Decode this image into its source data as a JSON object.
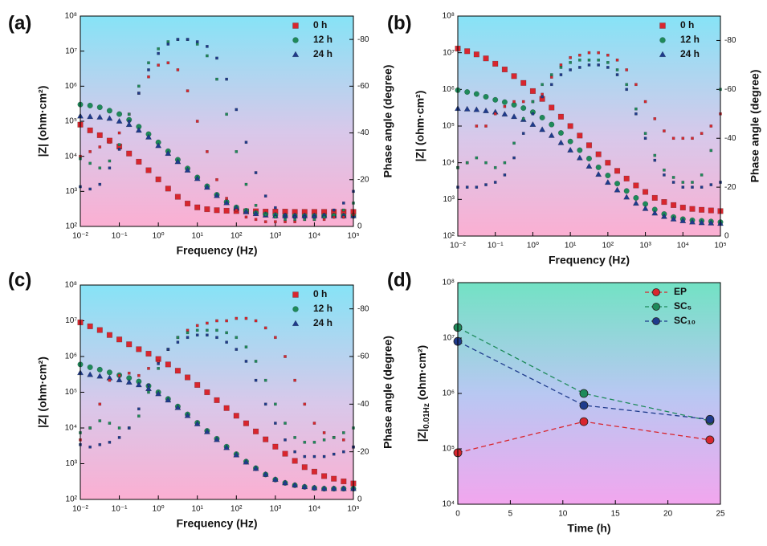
{
  "chart_data": [
    {
      "panel_label": "(a)",
      "type": "scatter",
      "xlabel": "Frequency (Hz)",
      "ylabel": "|Z| (ohm·cm²)",
      "y2label": "Phase angle (degree)",
      "xscale": "log",
      "yscale": "log",
      "legend": "upper right",
      "x": [
        0.01,
        0.0178,
        0.0316,
        0.0562,
        0.1,
        0.178,
        0.316,
        0.562,
        1,
        1.78,
        3.16,
        5.62,
        10,
        17.8,
        31.6,
        56.2,
        100,
        178,
        316,
        562,
        1000,
        1780,
        3160,
        5620,
        10000,
        17800,
        31600,
        56200,
        100000
      ],
      "xlim": [
        0.01,
        100000
      ],
      "xticks": [
        {
          "value": 0.01,
          "label": "10⁻²"
        },
        {
          "value": 0.1,
          "label": "10⁻¹"
        },
        {
          "value": 1,
          "label": "10⁰"
        },
        {
          "value": 10,
          "label": "10¹"
        },
        {
          "value": 100,
          "label": "10²"
        },
        {
          "value": 1000,
          "label": "10³"
        },
        {
          "value": 10000,
          "label": "10⁴"
        },
        {
          "value": 100000,
          "label": "10⁵"
        }
      ],
      "ylim": [
        100,
        100000000
      ],
      "yticks": [
        {
          "value": 100,
          "label": "10²"
        },
        {
          "value": 1000,
          "label": "10³"
        },
        {
          "value": 10000,
          "label": "10⁴"
        },
        {
          "value": 100000,
          "label": "10⁵"
        },
        {
          "value": 1000000,
          "label": "10⁶"
        },
        {
          "value": 10000000,
          "label": "10⁷"
        },
        {
          "value": 100000000,
          "label": "10⁸"
        }
      ],
      "y2lim": [
        0,
        -90
      ],
      "y2ticks": [
        0,
        -20,
        -40,
        -60,
        -80
      ],
      "series": [
        {
          "name": "0 h",
          "color": "#d8262e",
          "marker": "square",
          "values": [
            80000,
            55000,
            40000,
            28000,
            19000,
            12000,
            7000,
            4000,
            2200,
            1200,
            700,
            450,
            350,
            310,
            290,
            280,
            275,
            270,
            270,
            265,
            265,
            265,
            260,
            260,
            260,
            260,
            260,
            260,
            260
          ]
        },
        {
          "name": "12 h",
          "color": "#1e8a5a",
          "marker": "circle",
          "values": [
            300000,
            280000,
            250000,
            200000,
            160000,
            110000,
            70000,
            43000,
            25000,
            14000,
            8000,
            4500,
            2500,
            1400,
            800,
            500,
            350,
            280,
            240,
            220,
            210,
            200,
            200,
            200,
            200,
            200,
            200,
            200,
            200
          ]
        },
        {
          "name": "24 h",
          "color": "#1f3b8c",
          "marker": "triangle",
          "values": [
            140000,
            135000,
            130000,
            120000,
            100000,
            80000,
            55000,
            35000,
            20000,
            12000,
            7000,
            4000,
            2300,
            1300,
            750,
            470,
            330,
            260,
            230,
            210,
            200,
            200,
            200,
            200,
            200,
            200,
            200,
            200,
            200
          ]
        },
        {
          "color": "#d8262e",
          "marker": "square",
          "axis": "y2",
          "values": [
            -30,
            -32,
            -34,
            -36,
            -40,
            -48,
            -57,
            -64,
            -69,
            -70,
            -67,
            -58,
            -45,
            -32,
            -20,
            -12,
            -7,
            -4,
            -3,
            -2,
            -2,
            -2,
            -2,
            -3,
            -3,
            -3,
            -4,
            -4,
            -5
          ]
        },
        {
          "color": "#1e8a5a",
          "marker": "square",
          "axis": "y2",
          "values": [
            -29,
            -27,
            -25,
            -28,
            -35,
            -48,
            -60,
            -70,
            -76,
            -79,
            -80,
            -80,
            -78,
            -73,
            -63,
            -48,
            -32,
            -18,
            -9,
            -5,
            -4,
            -3,
            -3,
            -3,
            -3,
            -4,
            -5,
            -7,
            -10
          ]
        },
        {
          "color": "#1f3b8c",
          "marker": "square",
          "axis": "y2",
          "values": [
            -17,
            -16,
            -18,
            -25,
            -33,
            -45,
            -57,
            -67,
            -74,
            -78,
            -80,
            -80,
            -79,
            -77,
            -72,
            -63,
            -50,
            -36,
            -23,
            -13,
            -8,
            -5,
            -4,
            -4,
            -4,
            -5,
            -7,
            -10,
            -15
          ]
        }
      ]
    },
    {
      "panel_label": "(b)",
      "type": "scatter",
      "xlabel": "Frequency (Hz)",
      "ylabel": "|Z| (ohm·cm²)",
      "y2label": "Phase angle (degree)",
      "xscale": "log",
      "yscale": "log",
      "legend": "upper right",
      "x": [
        0.01,
        0.0178,
        0.0316,
        0.0562,
        0.1,
        0.178,
        0.316,
        0.562,
        1,
        1.78,
        3.16,
        5.62,
        10,
        17.8,
        31.6,
        56.2,
        100,
        178,
        316,
        562,
        1000,
        1780,
        3160,
        5620,
        10000,
        17800,
        31600,
        56200,
        100000
      ],
      "xlim": [
        0.01,
        100000
      ],
      "xticks": [
        {
          "value": 0.01,
          "label": "10⁻²"
        },
        {
          "value": 0.1,
          "label": "10⁻¹"
        },
        {
          "value": 1,
          "label": "10⁰"
        },
        {
          "value": 10,
          "label": "10¹"
        },
        {
          "value": 100,
          "label": "10²"
        },
        {
          "value": 1000,
          "label": "10³"
        },
        {
          "value": 10000,
          "label": "10⁴"
        },
        {
          "value": 100000,
          "label": "10⁵"
        }
      ],
      "ylim": [
        100,
        100000000
      ],
      "yticks": [
        {
          "value": 100,
          "label": "10²"
        },
        {
          "value": 1000,
          "label": "10³"
        },
        {
          "value": 10000,
          "label": "10⁴"
        },
        {
          "value": 100000,
          "label": "10⁵"
        },
        {
          "value": 1000000,
          "label": "10⁶"
        },
        {
          "value": 10000000,
          "label": "10⁷"
        },
        {
          "value": 100000000,
          "label": "10⁸"
        }
      ],
      "y2lim": [
        0,
        -90
      ],
      "y2ticks": [
        0,
        -20,
        -40,
        -60,
        -80
      ],
      "series": [
        {
          "name": "0 h",
          "color": "#d8262e",
          "marker": "square",
          "values": [
            13000000,
            11000000,
            9000000,
            7000000,
            5000000,
            3500000,
            2300000,
            1500000,
            900000,
            550000,
            320000,
            180000,
            100000,
            55000,
            30000,
            17000,
            10000,
            6000,
            3700,
            2400,
            1600,
            1100,
            850,
            700,
            600,
            550,
            520,
            500,
            480
          ]
        },
        {
          "name": "12 h",
          "color": "#1e8a5a",
          "marker": "circle",
          "values": [
            950000,
            850000,
            750000,
            630000,
            520000,
            450000,
            380000,
            310000,
            240000,
            170000,
            110000,
            65000,
            38000,
            22000,
            13000,
            7500,
            4500,
            2700,
            1700,
            1100,
            750,
            530,
            400,
            330,
            290,
            270,
            260,
            250,
            240
          ]
        },
        {
          "name": "24 h",
          "color": "#1f3b8c",
          "marker": "triangle",
          "values": [
            300000,
            290000,
            280000,
            260000,
            240000,
            210000,
            180000,
            150000,
            110000,
            80000,
            55000,
            35000,
            22000,
            13500,
            8000,
            4800,
            2900,
            1800,
            1150,
            780,
            560,
            420,
            340,
            290,
            260,
            240,
            230,
            225,
            220
          ]
        },
        {
          "color": "#d8262e",
          "marker": "square",
          "axis": "y2",
          "values": [
            -28,
            -30,
            -45,
            -45,
            -50,
            -53,
            -55,
            -55,
            -55,
            -58,
            -65,
            -70,
            -73,
            -74,
            -75,
            -75,
            -74,
            -72,
            -68,
            -62,
            -55,
            -48,
            -43,
            -40,
            -40,
            -40,
            -42,
            -45,
            -50
          ]
        },
        {
          "color": "#1e8a5a",
          "marker": "square",
          "axis": "y2",
          "values": [
            -28,
            -30,
            -32,
            -30,
            -28,
            -30,
            -38,
            -48,
            -55,
            -62,
            -66,
            -69,
            -71,
            -72,
            -72,
            -72,
            -71,
            -68,
            -62,
            -52,
            -42,
            -33,
            -27,
            -24,
            -22,
            -22,
            -25,
            -35,
            -60
          ]
        },
        {
          "color": "#1f3b8c",
          "marker": "square",
          "axis": "y2",
          "values": [
            -20,
            -20,
            -20,
            -21,
            -22,
            -25,
            -32,
            -42,
            -50,
            -57,
            -62,
            -66,
            -68,
            -69,
            -70,
            -70,
            -69,
            -66,
            -60,
            -50,
            -40,
            -31,
            -25,
            -22,
            -20,
            -20,
            -20,
            -21,
            -22
          ]
        }
      ]
    },
    {
      "panel_label": "(c)",
      "type": "scatter",
      "xlabel": "Frequency (Hz)",
      "ylabel": "|Z| (ohm·cm²)",
      "y2label": "Phase angle (degree)",
      "xscale": "log",
      "yscale": "log",
      "legend": "upper right",
      "x": [
        0.01,
        0.0178,
        0.0316,
        0.0562,
        0.1,
        0.178,
        0.316,
        0.562,
        1,
        1.78,
        3.16,
        5.62,
        10,
        17.8,
        31.6,
        56.2,
        100,
        178,
        316,
        562,
        1000,
        1780,
        3160,
        5620,
        10000,
        17800,
        31600,
        56200,
        100000
      ],
      "xlim": [
        0.01,
        100000
      ],
      "xticks": [
        {
          "value": 0.01,
          "label": "10⁻²"
        },
        {
          "value": 0.1,
          "label": "10⁻¹"
        },
        {
          "value": 1,
          "label": "10⁰"
        },
        {
          "value": 10,
          "label": "10¹"
        },
        {
          "value": 100,
          "label": "10²"
        },
        {
          "value": 1000,
          "label": "10³"
        },
        {
          "value": 10000,
          "label": "10⁴"
        },
        {
          "value": 100000,
          "label": "10⁵"
        }
      ],
      "ylim": [
        100,
        100000000
      ],
      "yticks": [
        {
          "value": 100,
          "label": "10²"
        },
        {
          "value": 1000,
          "label": "10³"
        },
        {
          "value": 10000,
          "label": "10⁴"
        },
        {
          "value": 100000,
          "label": "10⁵"
        },
        {
          "value": 1000000,
          "label": "10⁶"
        },
        {
          "value": 10000000,
          "label": "10⁷"
        },
        {
          "value": 100000000,
          "label": "10⁸"
        }
      ],
      "y2lim": [
        0,
        -90
      ],
      "y2ticks": [
        0,
        -20,
        -40,
        -60,
        -80
      ],
      "series": [
        {
          "name": "0 h",
          "color": "#d8262e",
          "marker": "square",
          "values": [
            9000000,
            7000000,
            5500000,
            4000000,
            3000000,
            2200000,
            1600000,
            1200000,
            850000,
            600000,
            400000,
            260000,
            160000,
            100000,
            60000,
            36000,
            22000,
            13500,
            8000,
            4800,
            3000,
            1900,
            1200,
            800,
            600,
            450,
            380,
            320,
            280
          ]
        },
        {
          "name": "12 h",
          "color": "#1e8a5a",
          "marker": "circle",
          "values": [
            600000,
            500000,
            430000,
            360000,
            300000,
            250000,
            200000,
            150000,
            100000,
            65000,
            40000,
            24000,
            14000,
            8300,
            5000,
            3000,
            1850,
            1150,
            750,
            500,
            360,
            290,
            250,
            225,
            210,
            200,
            200,
            200,
            200
          ]
        },
        {
          "name": "24 h",
          "color": "#1f3b8c",
          "marker": "triangle",
          "values": [
            350000,
            310000,
            280000,
            250000,
            220000,
            190000,
            160000,
            125000,
            90000,
            60000,
            37000,
            22000,
            13000,
            7800,
            4700,
            2800,
            1750,
            1100,
            730,
            500,
            360,
            290,
            250,
            225,
            210,
            200,
            200,
            200,
            200
          ]
        },
        {
          "color": "#d8262e",
          "marker": "square",
          "axis": "y2",
          "values": [
            -25,
            -30,
            -40,
            -50,
            -52,
            -53,
            -52,
            -55,
            -58,
            -63,
            -68,
            -71,
            -73,
            -74,
            -75,
            -75,
            -76,
            -76,
            -75,
            -72,
            -68,
            -60,
            -50,
            -40,
            -32,
            -28,
            -26,
            -25,
            -22
          ]
        },
        {
          "color": "#1e8a5a",
          "marker": "square",
          "axis": "y2",
          "values": [
            -28,
            -30,
            -33,
            -32,
            -30,
            -30,
            -35,
            -45,
            -55,
            -63,
            -68,
            -70,
            -71,
            -71,
            -71,
            -70,
            -68,
            -64,
            -58,
            -50,
            -40,
            -32,
            -26,
            -24,
            -24,
            -25,
            -26,
            -28,
            -30
          ]
        },
        {
          "color": "#1f3b8c",
          "marker": "square",
          "axis": "y2",
          "values": [
            -23,
            -22,
            -23,
            -24,
            -26,
            -30,
            -38,
            -48,
            -57,
            -63,
            -66,
            -68,
            -69,
            -69,
            -68,
            -66,
            -63,
            -58,
            -50,
            -40,
            -32,
            -25,
            -20,
            -18,
            -18,
            -18,
            -19,
            -20,
            -22
          ]
        }
      ]
    },
    {
      "panel_label": "(d)",
      "type": "line",
      "xlabel": "Time (h)",
      "ylabel": [
        "|Z|",
        "0.01Hz",
        " (ohm·cm²)"
      ],
      "yscale": "log",
      "legend": "upper right",
      "linestyle": "dashed",
      "x": [
        0,
        12,
        24
      ],
      "xlim": [
        0,
        25
      ],
      "xticks": [
        0,
        5,
        10,
        15,
        20,
        25
      ],
      "ylim": [
        10000,
        100000000
      ],
      "yticks": [
        {
          "value": 10000,
          "label": "10⁴"
        },
        {
          "value": 100000,
          "label": "10⁵"
        },
        {
          "value": 1000000,
          "label": "10⁶"
        },
        {
          "value": 10000000,
          "label": "10⁷"
        },
        {
          "value": 100000000,
          "label": "10⁸"
        }
      ],
      "series": [
        {
          "name": "EP",
          "color": "#d8262e",
          "marker": "circle",
          "values": [
            85000,
            310000,
            145000
          ]
        },
        {
          "name": "SC₅",
          "color": "#1e8a5a",
          "marker": "circle",
          "values": [
            15500000,
            1000000,
            320000
          ]
        },
        {
          "name": "SC₁₀",
          "color": "#1f3b8c",
          "marker": "circle",
          "values": [
            8700000,
            610000,
            340000
          ]
        }
      ]
    }
  ]
}
